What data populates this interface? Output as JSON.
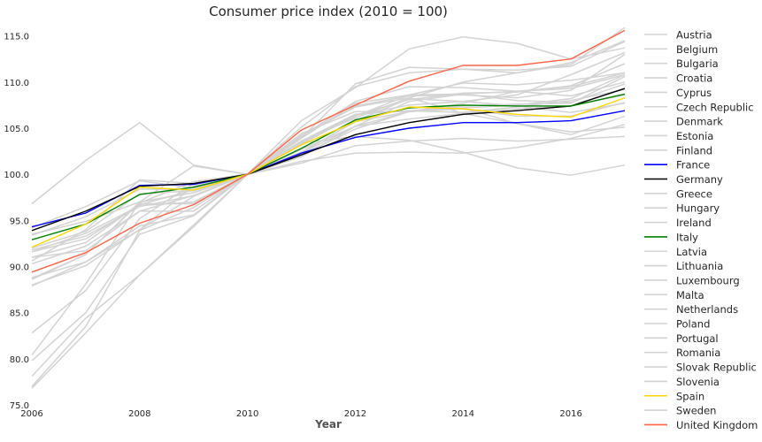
{
  "chart_data": {
    "type": "line",
    "title": "Consumer price index (2010 = 100)",
    "xlabel": "Year",
    "ylabel": "",
    "xlim": [
      2006,
      2017
    ],
    "ylim": [
      75,
      116.5
    ],
    "xticks": [
      2006,
      2008,
      2010,
      2012,
      2014,
      2016
    ],
    "xtick_labels": [
      "2006",
      "2008",
      "2010",
      "2012",
      "2014",
      "2016"
    ],
    "yticks": [
      75,
      80,
      85,
      90,
      95,
      100,
      105,
      110,
      115
    ],
    "ytick_labels": [
      "75.0",
      "80.0",
      "85.0",
      "90.0",
      "95.0",
      "100.0",
      "105.0",
      "110.0",
      "115.0"
    ],
    "grid": false,
    "legend_position": "right",
    "x": [
      2006,
      2007,
      2008,
      2009,
      2010,
      2011,
      2012,
      2013,
      2014,
      2015,
      2016,
      2017
    ],
    "series": [
      {
        "name": "Austria",
        "color": "#d3d3d3",
        "values": [
          91.6,
          93.6,
          96.6,
          97.0,
          100,
          103.6,
          106.1,
          108.3,
          110.0,
          111.0,
          112.1,
          114.5
        ]
      },
      {
        "name": "Belgium",
        "color": "#d3d3d3",
        "values": [
          91.0,
          92.6,
          96.8,
          96.8,
          100,
          103.5,
          106.4,
          107.5,
          107.9,
          108.6,
          110.8,
          113.2
        ]
      },
      {
        "name": "Bulgaria",
        "color": "#d3d3d3",
        "values": [
          77.0,
          83.5,
          93.9,
          96.4,
          100,
          104.2,
          107.3,
          108.3,
          106.6,
          105.5,
          104.3,
          106.3
        ]
      },
      {
        "name": "Croatia",
        "color": "#d3d3d3",
        "values": [
          88.6,
          91.3,
          96.9,
          99.2,
          100,
          102.3,
          105.8,
          108.2,
          107.9,
          107.4,
          106.7,
          107.7
        ]
      },
      {
        "name": "Cyprus",
        "color": "#d3d3d3",
        "values": [
          92.0,
          93.8,
          97.9,
          98.2,
          100,
          103.3,
          106.5,
          106.9,
          107.2,
          105.5,
          104.6,
          105.1
        ]
      },
      {
        "name": "Czech Republic",
        "color": "#d3d3d3",
        "values": [
          88.7,
          91.3,
          97.0,
          98.0,
          100,
          101.9,
          105.2,
          106.8,
          107.2,
          107.5,
          108.2,
          110.8
        ]
      },
      {
        "name": "Denmark",
        "color": "#d3d3d3",
        "values": [
          91.8,
          93.3,
          96.5,
          97.7,
          100,
          102.7,
          105.2,
          106.0,
          106.6,
          107.1,
          107.4,
          108.6
        ]
      },
      {
        "name": "Estonia",
        "color": "#d3d3d3",
        "values": [
          79.8,
          85.0,
          93.5,
          95.5,
          100,
          105.1,
          109.5,
          111.0,
          111.4,
          111.0,
          111.9,
          115.9
        ]
      },
      {
        "name": "Finland",
        "color": "#d3d3d3",
        "values": [
          91.6,
          93.0,
          96.7,
          98.3,
          100,
          103.3,
          106.3,
          108.6,
          109.9,
          109.7,
          110.2,
          111.0
        ]
      },
      {
        "name": "France",
        "color": "#0000ff",
        "values": [
          94.3,
          95.8,
          98.8,
          98.9,
          100,
          102.3,
          104.0,
          105.0,
          105.6,
          105.6,
          105.8,
          106.9
        ]
      },
      {
        "name": "Germany",
        "color": "#000000",
        "values": [
          93.9,
          96.0,
          98.7,
          99.0,
          100,
          102.1,
          104.3,
          105.6,
          106.5,
          106.9,
          107.4,
          109.3
        ]
      },
      {
        "name": "Greece",
        "color": "#d3d3d3",
        "values": [
          87.9,
          90.5,
          94.4,
          95.6,
          100,
          103.4,
          104.1,
          103.7,
          102.4,
          100.7,
          99.9,
          101.0
        ]
      },
      {
        "name": "Hungary",
        "color": "#d3d3d3",
        "values": [
          78.1,
          84.4,
          89.1,
          94.3,
          100,
          103.9,
          109.8,
          111.6,
          111.4,
          111.3,
          111.7,
          114.4
        ]
      },
      {
        "name": "Ireland",
        "color": "#d3d3d3",
        "values": [
          96.8,
          101.5,
          105.6,
          101.0,
          100,
          101.2,
          103.1,
          103.6,
          103.9,
          103.6,
          103.8,
          104.1
        ]
      },
      {
        "name": "Italy",
        "color": "#008000",
        "values": [
          92.9,
          94.6,
          97.8,
          98.6,
          100,
          102.8,
          105.9,
          107.2,
          107.5,
          107.4,
          107.4,
          108.7
        ]
      },
      {
        "name": "Latvia",
        "color": "#d3d3d3",
        "values": [
          80.4,
          88.1,
          97.0,
          100.9,
          100,
          104.4,
          106.8,
          106.8,
          107.4,
          107.6,
          107.7,
          110.6
        ]
      },
      {
        "name": "Lithuania",
        "color": "#d3d3d3",
        "values": [
          82.8,
          87.4,
          95.2,
          99.0,
          100,
          104.1,
          107.4,
          108.5,
          108.6,
          108.3,
          109.1,
          113.0
        ]
      },
      {
        "name": "Luxembourg",
        "color": "#d3d3d3",
        "values": [
          90.3,
          92.2,
          96.0,
          96.0,
          100,
          103.4,
          106.4,
          108.1,
          108.8,
          108.9,
          109.6,
          112.0
        ]
      },
      {
        "name": "Malta",
        "color": "#d3d3d3",
        "values": [
          91.0,
          91.7,
          96.0,
          97.7,
          100,
          102.4,
          105.7,
          106.8,
          107.7,
          109.0,
          109.5,
          111.0
        ]
      },
      {
        "name": "Netherlands",
        "color": "#d3d3d3",
        "values": [
          93.5,
          94.9,
          97.0,
          98.0,
          100,
          102.3,
          105.2,
          107.9,
          108.7,
          109.0,
          109.3,
          110.8
        ]
      },
      {
        "name": "Poland",
        "color": "#d3d3d3",
        "values": [
          88.0,
          90.1,
          94.0,
          97.6,
          100,
          103.9,
          107.7,
          108.6,
          108.7,
          108.0,
          107.8,
          109.8
        ]
      },
      {
        "name": "Portugal",
        "color": "#d3d3d3",
        "values": [
          94.2,
          96.5,
          99.3,
          98.5,
          100,
          103.6,
          106.5,
          106.9,
          106.7,
          107.3,
          108.0,
          109.2
        ]
      },
      {
        "name": "Romania",
        "color": "#d3d3d3",
        "values": [
          76.8,
          82.8,
          89.1,
          94.5,
          100,
          105.8,
          109.4,
          113.6,
          114.9,
          114.2,
          112.5,
          113.7
        ]
      },
      {
        "name": "Slovak Republic",
        "color": "#d3d3d3",
        "values": [
          88.8,
          90.5,
          94.0,
          98.7,
          100,
          104.1,
          107.9,
          109.5,
          109.4,
          109.0,
          108.5,
          110.0
        ]
      },
      {
        "name": "Slovenia",
        "color": "#d3d3d3",
        "values": [
          90.6,
          94.0,
          99.4,
          99.0,
          100,
          102.1,
          104.9,
          106.8,
          107.1,
          106.3,
          106.3,
          107.8
        ]
      },
      {
        "name": "Spain",
        "color": "#ffd700",
        "values": [
          92.1,
          94.6,
          98.6,
          98.3,
          100,
          103.2,
          105.7,
          107.3,
          107.1,
          106.5,
          106.2,
          108.3
        ]
      },
      {
        "name": "Sweden",
        "color": "#d3d3d3",
        "values": [
          93.4,
          95.4,
          98.4,
          98.3,
          100,
          101.4,
          102.3,
          102.4,
          102.3,
          102.9,
          103.9,
          105.4
        ]
      },
      {
        "name": "United Kingdom",
        "color": "#ff6347",
        "values": [
          89.4,
          91.5,
          94.7,
          96.7,
          100,
          104.8,
          107.5,
          110.1,
          111.8,
          111.8,
          112.5,
          115.6
        ]
      }
    ]
  }
}
